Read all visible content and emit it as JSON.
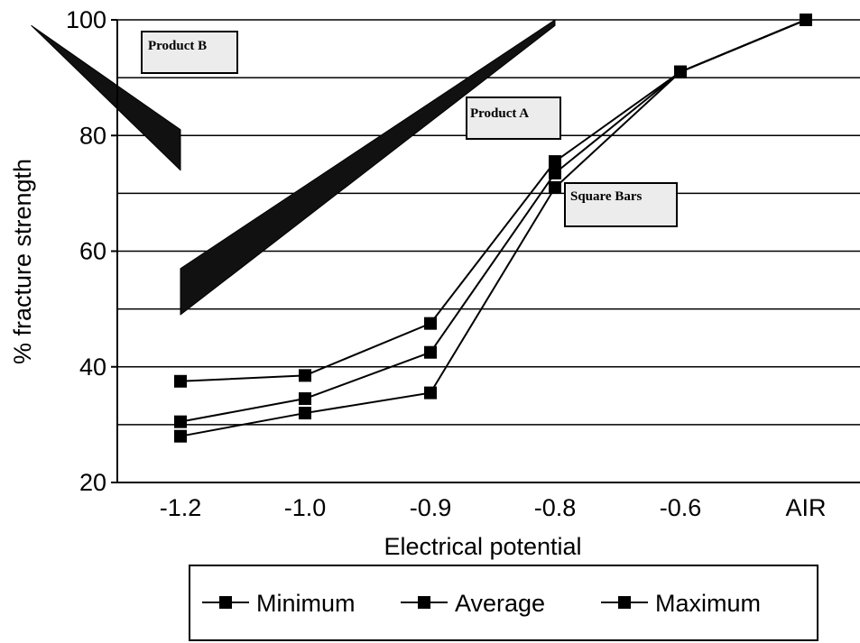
{
  "chart_data": {
    "type": "line",
    "xlabel": "Electrical potential",
    "ylabel": "% fracture strength",
    "categories": [
      "-1.2",
      "-1.0",
      "-0.9",
      "-0.8",
      "-0.6",
      "AIR"
    ],
    "ylim": [
      20,
      100
    ],
    "yticks": [
      20,
      40,
      60,
      80,
      100
    ],
    "grid": true,
    "legend_position": "bottom",
    "series": [
      {
        "name": "Minimum",
        "values": [
          28,
          32,
          35.5,
          71,
          91,
          100
        ]
      },
      {
        "name": "Average",
        "values": [
          30.5,
          34.5,
          42.5,
          73.5,
          91,
          100
        ]
      },
      {
        "name": "Maximum",
        "values": [
          37.5,
          38.5,
          47.5,
          75.5,
          91,
          100
        ]
      }
    ],
    "bands": [
      {
        "label": "Product A",
        "x_range": [
          "-1.2",
          "-0.8"
        ],
        "y_start": [
          49,
          57
        ],
        "y_end": [
          99,
          100
        ]
      },
      {
        "label": "Product B",
        "x_range": [
          "-1.2",
          "-0.95"
        ],
        "y_start": [
          74,
          81
        ],
        "y_end": [
          98,
          99
        ]
      }
    ],
    "annotations": [
      "Product B",
      "Product A",
      "Square Bars"
    ]
  },
  "colors": {
    "line": "#000000",
    "band": "#111111",
    "label_box": "#ececec"
  }
}
